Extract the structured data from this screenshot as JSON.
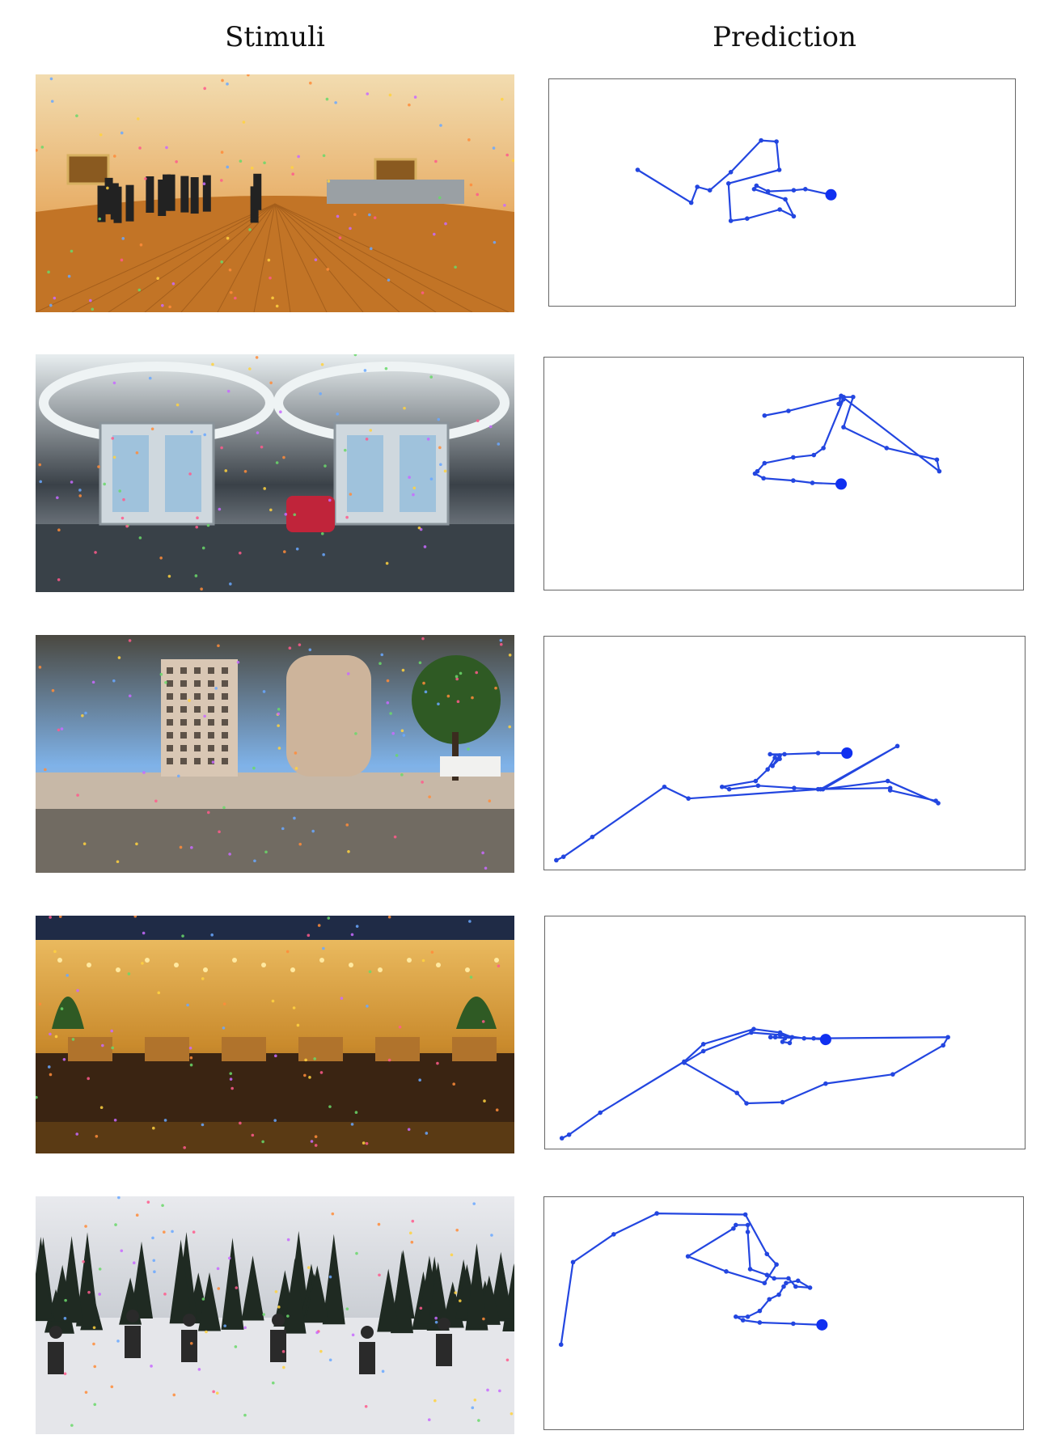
{
  "headers": {
    "stimuli": "Stimuli",
    "prediction": "Prediction"
  },
  "colors": {
    "path": "#2346e0",
    "start_dot": "#1030f0"
  },
  "rows": [
    {
      "stimulus": {
        "scene": "indoor-room",
        "palette": [
          "#e8b06a",
          "#c07a30",
          "#f2dcb0"
        ]
      },
      "prediction_path": [
        [
          0.19,
          0.4
        ],
        [
          0.305,
          0.545
        ],
        [
          0.318,
          0.475
        ],
        [
          0.345,
          0.49
        ],
        [
          0.39,
          0.41
        ],
        [
          0.455,
          0.27
        ],
        [
          0.488,
          0.275
        ],
        [
          0.494,
          0.4
        ],
        [
          0.385,
          0.46
        ],
        [
          0.39,
          0.625
        ],
        [
          0.425,
          0.615
        ],
        [
          0.495,
          0.575
        ],
        [
          0.525,
          0.605
        ],
        [
          0.507,
          0.53
        ],
        [
          0.44,
          0.485
        ],
        [
          0.445,
          0.47
        ],
        [
          0.47,
          0.495
        ],
        [
          0.525,
          0.49
        ],
        [
          0.55,
          0.485
        ],
        [
          0.605,
          0.51
        ]
      ]
    },
    {
      "stimulus": {
        "scene": "tram-interior",
        "palette": [
          "#3a4148",
          "#b7c0c8",
          "#e8eef0"
        ]
      },
      "prediction_path": [
        [
          0.46,
          0.25
        ],
        [
          0.51,
          0.23
        ],
        [
          0.625,
          0.17
        ],
        [
          0.645,
          0.17
        ],
        [
          0.625,
          0.3
        ],
        [
          0.715,
          0.39
        ],
        [
          0.82,
          0.44
        ],
        [
          0.825,
          0.49
        ],
        [
          0.62,
          0.165
        ],
        [
          0.615,
          0.2
        ],
        [
          0.625,
          0.18
        ],
        [
          0.583,
          0.39
        ],
        [
          0.563,
          0.42
        ],
        [
          0.52,
          0.43
        ],
        [
          0.46,
          0.455
        ],
        [
          0.445,
          0.49
        ],
        [
          0.44,
          0.5
        ],
        [
          0.458,
          0.52
        ],
        [
          0.52,
          0.53
        ],
        [
          0.56,
          0.54
        ],
        [
          0.62,
          0.545
        ]
      ]
    },
    {
      "stimulus": {
        "scene": "plaza",
        "palette": [
          "#7fb2e8",
          "#c9bdb0",
          "#4a4840"
        ]
      },
      "prediction_path": [
        [
          0.025,
          0.96
        ],
        [
          0.04,
          0.945
        ],
        [
          0.1,
          0.86
        ],
        [
          0.25,
          0.645
        ],
        [
          0.3,
          0.695
        ],
        [
          0.575,
          0.655
        ],
        [
          0.735,
          0.47
        ],
        [
          0.58,
          0.655
        ],
        [
          0.715,
          0.62
        ],
        [
          0.82,
          0.715
        ],
        [
          0.815,
          0.705
        ],
        [
          0.72,
          0.66
        ],
        [
          0.72,
          0.65
        ],
        [
          0.57,
          0.655
        ],
        [
          0.52,
          0.65
        ],
        [
          0.445,
          0.64
        ],
        [
          0.385,
          0.655
        ],
        [
          0.37,
          0.645
        ],
        [
          0.44,
          0.62
        ],
        [
          0.465,
          0.57
        ],
        [
          0.48,
          0.52
        ],
        [
          0.49,
          0.525
        ],
        [
          0.475,
          0.555
        ],
        [
          0.49,
          0.51
        ],
        [
          0.47,
          0.505
        ],
        [
          0.5,
          0.505
        ],
        [
          0.57,
          0.5
        ],
        [
          0.63,
          0.5
        ]
      ]
    },
    {
      "stimulus": {
        "scene": "hotel-lobby",
        "palette": [
          "#c98a2c",
          "#5a3a18",
          "#f1c46a"
        ]
      },
      "prediction_path": [
        [
          0.035,
          0.955
        ],
        [
          0.05,
          0.94
        ],
        [
          0.115,
          0.845
        ],
        [
          0.29,
          0.625
        ],
        [
          0.33,
          0.55
        ],
        [
          0.435,
          0.485
        ],
        [
          0.49,
          0.5
        ],
        [
          0.515,
          0.52
        ],
        [
          0.51,
          0.545
        ],
        [
          0.495,
          0.54
        ],
        [
          0.5,
          0.525
        ],
        [
          0.48,
          0.52
        ],
        [
          0.47,
          0.52
        ],
        [
          0.56,
          0.525
        ],
        [
          0.84,
          0.52
        ],
        [
          0.83,
          0.555
        ],
        [
          0.725,
          0.68
        ],
        [
          0.585,
          0.72
        ],
        [
          0.495,
          0.8
        ],
        [
          0.42,
          0.805
        ],
        [
          0.4,
          0.76
        ],
        [
          0.29,
          0.63
        ],
        [
          0.33,
          0.58
        ],
        [
          0.43,
          0.5
        ],
        [
          0.49,
          0.51
        ],
        [
          0.54,
          0.525
        ],
        [
          0.585,
          0.53
        ]
      ]
    },
    {
      "stimulus": {
        "scene": "snowy-forest",
        "palette": [
          "#c8ccd2",
          "#1f2a22",
          "#e9eaee"
        ]
      },
      "prediction_path": [
        [
          0.035,
          0.635
        ],
        [
          0.06,
          0.28
        ],
        [
          0.145,
          0.16
        ],
        [
          0.235,
          0.07
        ],
        [
          0.42,
          0.075
        ],
        [
          0.465,
          0.245
        ],
        [
          0.485,
          0.29
        ],
        [
          0.46,
          0.37
        ],
        [
          0.38,
          0.32
        ],
        [
          0.3,
          0.255
        ],
        [
          0.395,
          0.135
        ],
        [
          0.4,
          0.12
        ],
        [
          0.425,
          0.12
        ],
        [
          0.425,
          0.15
        ],
        [
          0.43,
          0.31
        ],
        [
          0.465,
          0.335
        ],
        [
          0.48,
          0.35
        ],
        [
          0.51,
          0.35
        ],
        [
          0.525,
          0.385
        ],
        [
          0.555,
          0.39
        ],
        [
          0.53,
          0.36
        ],
        [
          0.505,
          0.37
        ],
        [
          0.5,
          0.385
        ],
        [
          0.49,
          0.42
        ],
        [
          0.47,
          0.44
        ],
        [
          0.45,
          0.49
        ],
        [
          0.425,
          0.515
        ],
        [
          0.4,
          0.515
        ],
        [
          0.415,
          0.53
        ],
        [
          0.45,
          0.54
        ],
        [
          0.52,
          0.545
        ],
        [
          0.58,
          0.55
        ]
      ]
    }
  ]
}
